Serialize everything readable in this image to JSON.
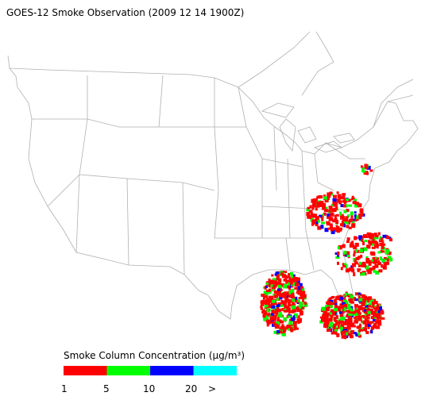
{
  "title": "GOES-12 Smoke Observation (2009 12 14  1900Z)",
  "legend": {
    "title": "Smoke Column Concentration (µg/m³)",
    "colors": [
      "#ff0000",
      "#00ff00",
      "#0000ff",
      "#00ffff"
    ],
    "labels": [
      "1",
      "5",
      "10",
      "20",
      ">"
    ]
  }
}
